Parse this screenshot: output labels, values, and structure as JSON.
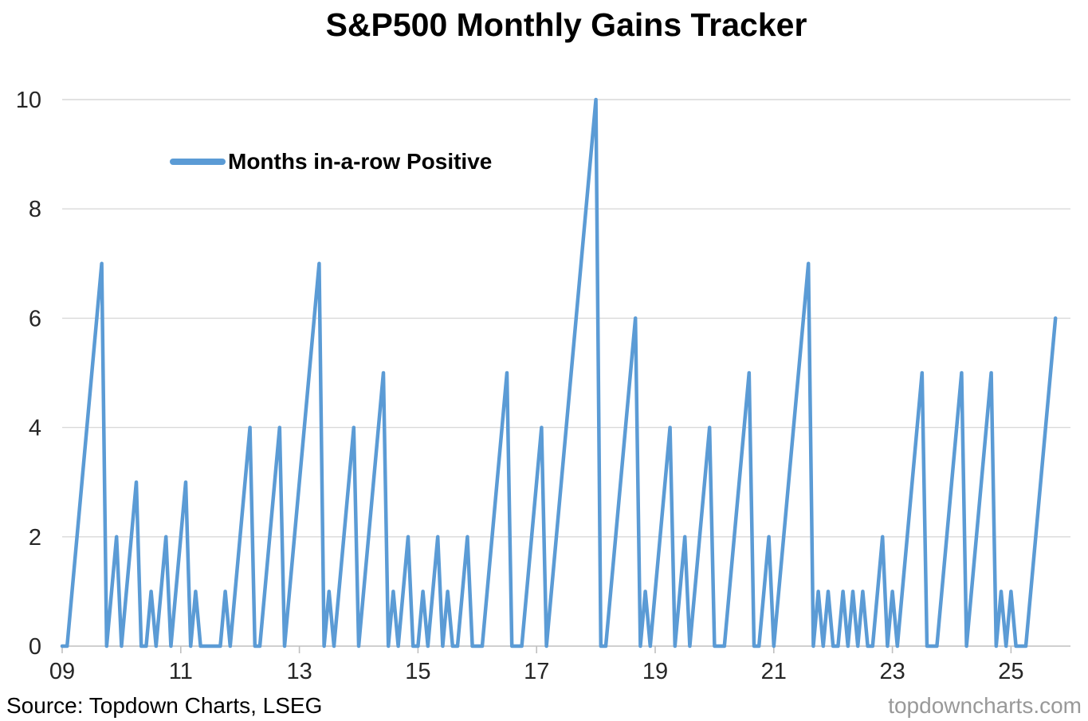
{
  "colors": {
    "line": "#5B9BD5",
    "grid": "#D9D9D9",
    "axis": "#C0C0C0",
    "tick": "#BFBFBF",
    "axis_text": "#262626",
    "watermark_text": "#999999"
  },
  "footer": {
    "source": "Source: Topdown Charts, LSEG",
    "watermark": "topdowncharts.com"
  },
  "chart_data": {
    "type": "line",
    "title": "S&P500 Monthly Gains Tracker",
    "xlabel": "",
    "ylabel": "",
    "x_start": "2009-01",
    "x_frequency": "monthly",
    "x_tick_labels": [
      "09",
      "11",
      "13",
      "15",
      "17",
      "19",
      "21",
      "23",
      "25"
    ],
    "x_tick_month_index": [
      0,
      24,
      48,
      72,
      96,
      120,
      144,
      168,
      192
    ],
    "x_month_range": [
      0,
      204
    ],
    "y_ticks": [
      0,
      2,
      4,
      6,
      8,
      10
    ],
    "ylim": [
      0,
      10
    ],
    "grid": "horizontal-only",
    "legend_position": "inside-upper-left",
    "legend": [
      "Months in-a-row Positive"
    ],
    "series": [
      {
        "name": "Months in-a-row Positive",
        "color": "#5B9BD5",
        "values": [
          0,
          0,
          1,
          2,
          3,
          4,
          5,
          6,
          7,
          0,
          1,
          2,
          0,
          1,
          2,
          3,
          0,
          0,
          1,
          0,
          1,
          2,
          0,
          1,
          2,
          3,
          0,
          1,
          0,
          0,
          0,
          0,
          0,
          1,
          0,
          1,
          2,
          3,
          4,
          0,
          0,
          1,
          2,
          3,
          4,
          0,
          1,
          2,
          3,
          4,
          5,
          6,
          7,
          0,
          1,
          0,
          1,
          2,
          3,
          4,
          0,
          1,
          2,
          3,
          4,
          5,
          0,
          1,
          0,
          1,
          2,
          0,
          0,
          1,
          0,
          1,
          2,
          0,
          1,
          0,
          0,
          1,
          2,
          0,
          0,
          0,
          1,
          2,
          3,
          4,
          5,
          0,
          0,
          0,
          1,
          2,
          3,
          4,
          0,
          1,
          2,
          3,
          4,
          5,
          6,
          7,
          8,
          9,
          10,
          0,
          0,
          1,
          2,
          3,
          4,
          5,
          6,
          0,
          1,
          0,
          1,
          2,
          3,
          4,
          0,
          1,
          2,
          0,
          1,
          2,
          3,
          4,
          0,
          0,
          0,
          1,
          2,
          3,
          4,
          5,
          0,
          0,
          1,
          2,
          0,
          1,
          2,
          3,
          4,
          5,
          6,
          7,
          0,
          1,
          0,
          1,
          0,
          0,
          1,
          0,
          1,
          0,
          1,
          0,
          0,
          1,
          2,
          0,
          1,
          0,
          1,
          2,
          3,
          4,
          5,
          0,
          0,
          0,
          1,
          2,
          3,
          4,
          5,
          0,
          1,
          2,
          3,
          4,
          5,
          0,
          1,
          0,
          1,
          0,
          0,
          0,
          1,
          2,
          3,
          4,
          5,
          6
        ]
      }
    ]
  }
}
